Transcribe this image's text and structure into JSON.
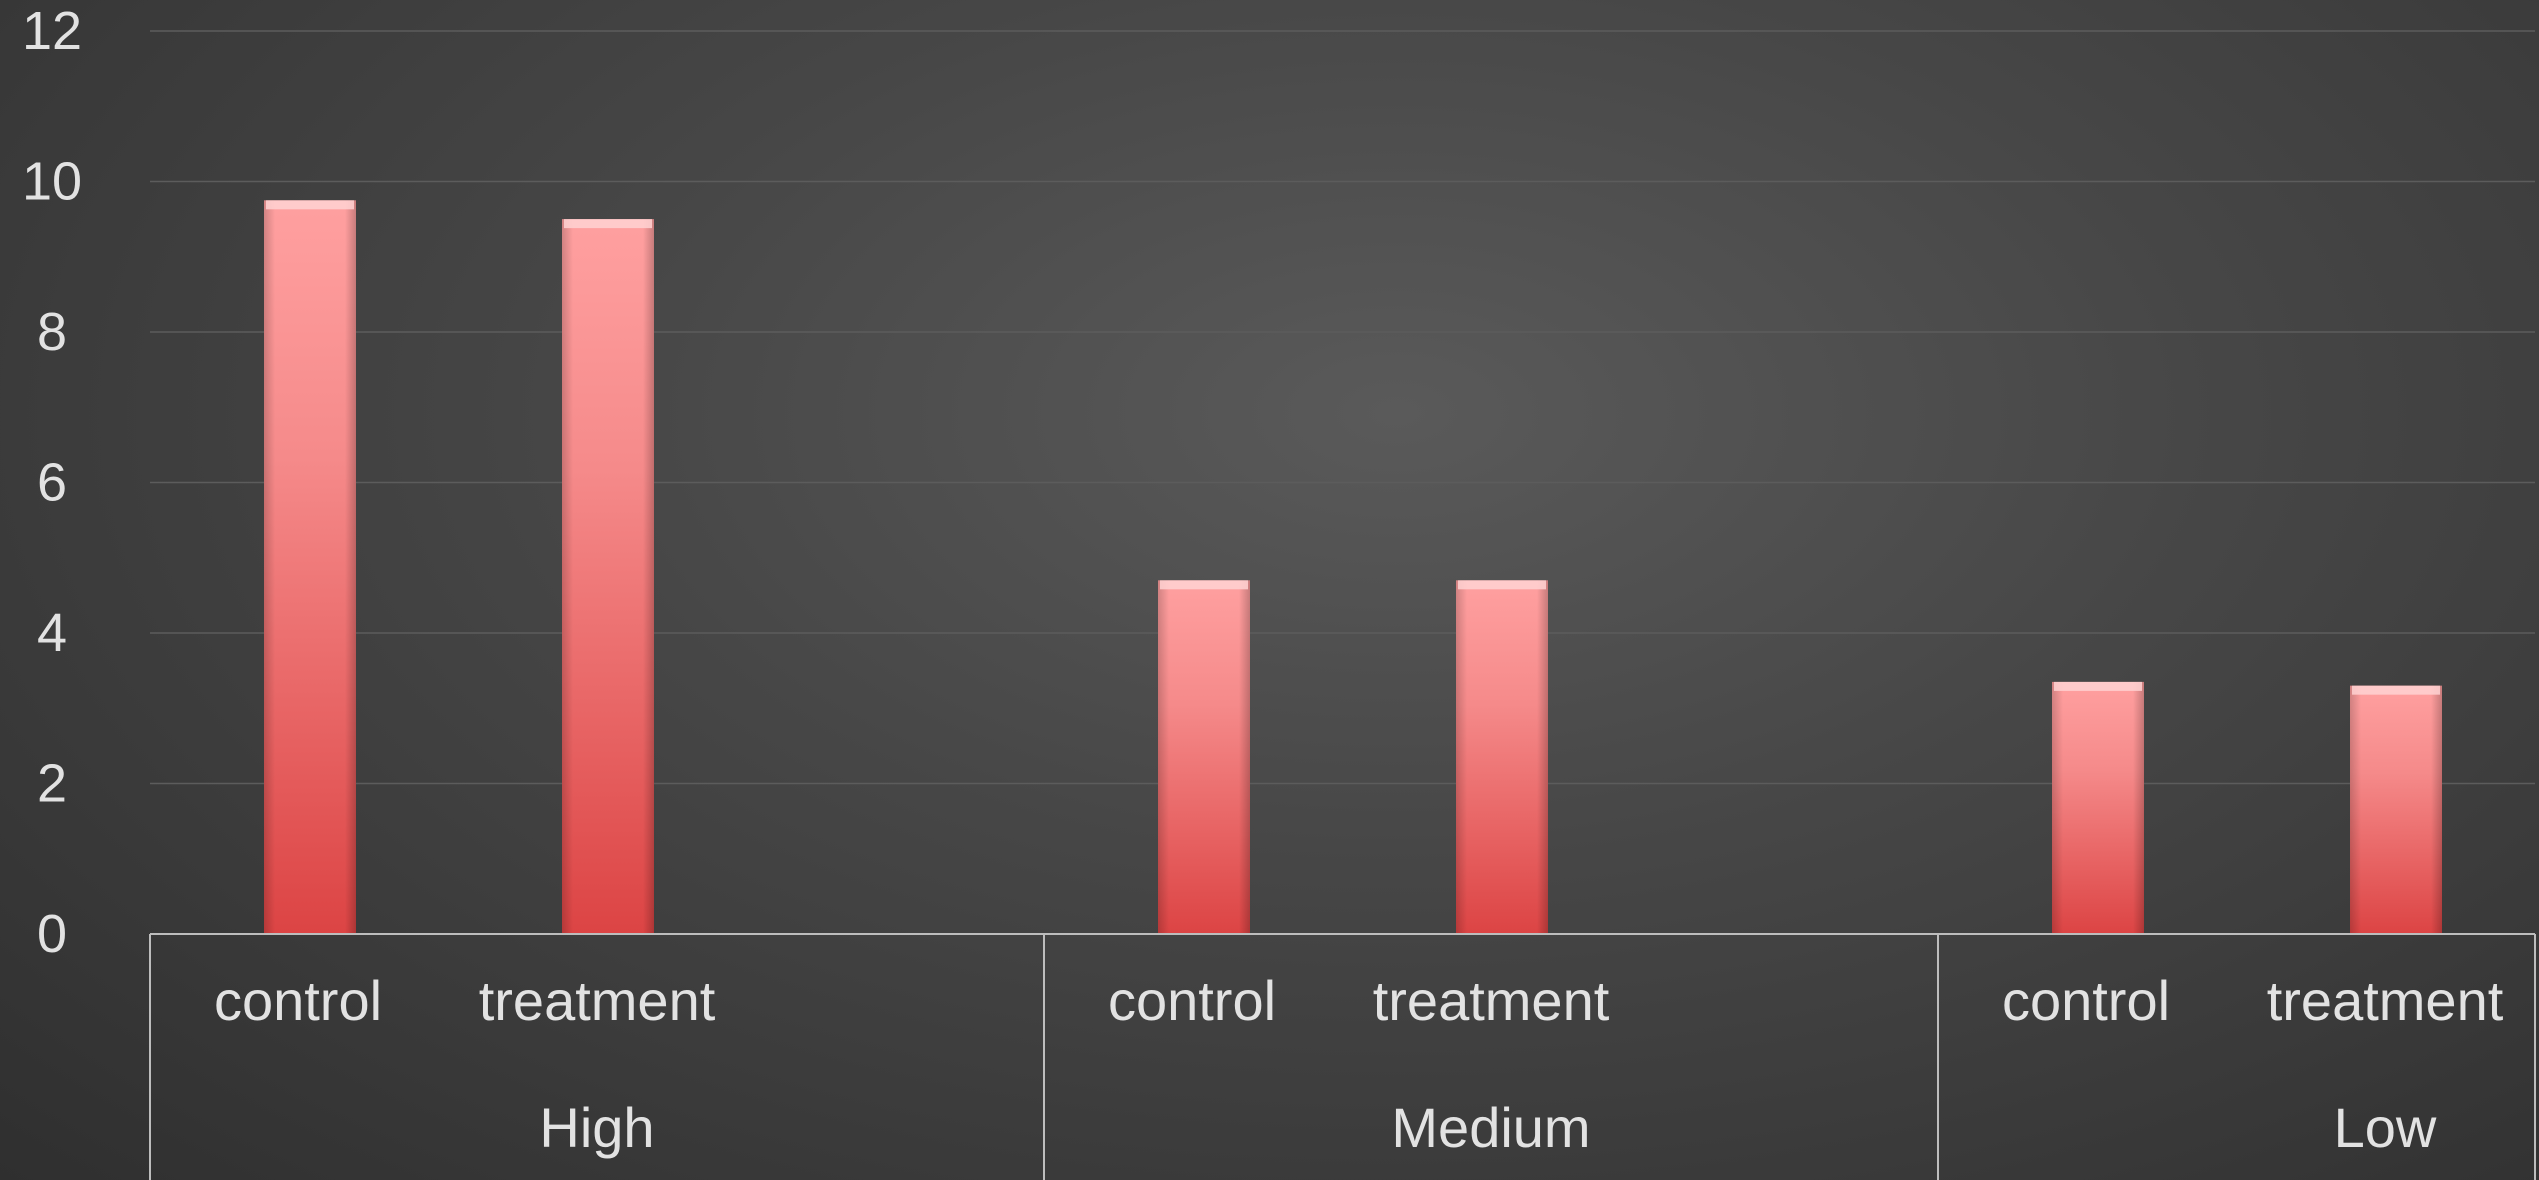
{
  "chart_data": {
    "type": "bar",
    "title": "",
    "xlabel": "",
    "ylabel": "",
    "ylim": [
      0,
      12
    ],
    "yticks": [
      0,
      2,
      4,
      6,
      8,
      10,
      12
    ],
    "grid": true,
    "legend": "none",
    "groups": [
      {
        "label": "High",
        "bars": [
          {
            "label": "control",
            "value": 9.75
          },
          {
            "label": "treatment",
            "value": 9.5
          }
        ]
      },
      {
        "label": "Medium",
        "bars": [
          {
            "label": "control",
            "value": 4.7
          },
          {
            "label": "treatment",
            "value": 4.7
          }
        ]
      },
      {
        "label": "Low",
        "bars": [
          {
            "label": "control",
            "value": 3.35
          },
          {
            "label": "treatment",
            "value": 3.3
          }
        ]
      }
    ],
    "colors": {
      "bar_top": "#ffa0a0",
      "bar_bottom": "#dc4444",
      "grid": "#5c5c5c",
      "axis": "#bdbdbd",
      "text": "#e2e2e2"
    }
  }
}
